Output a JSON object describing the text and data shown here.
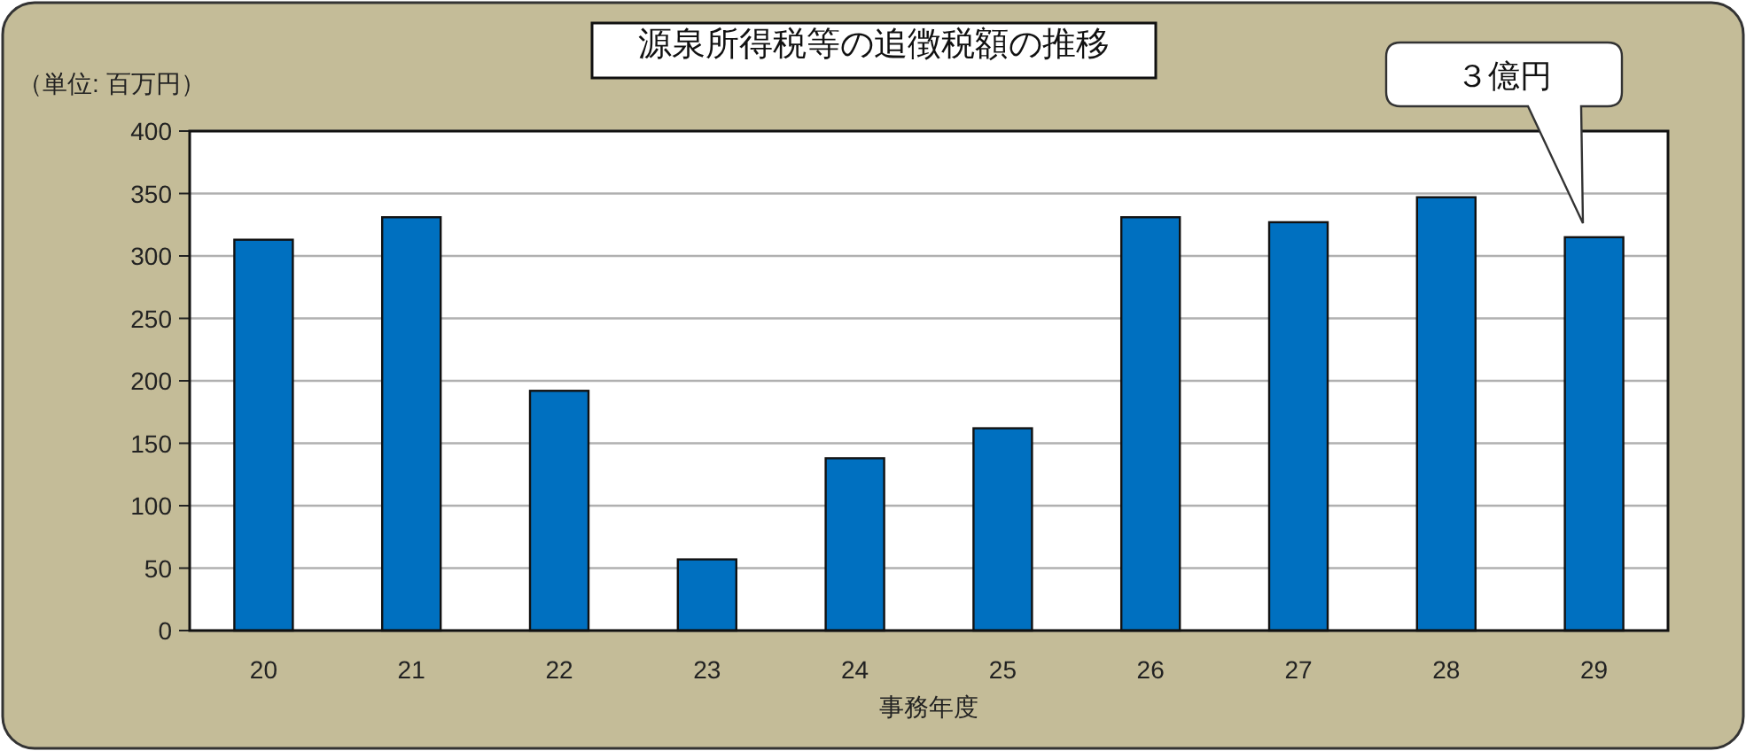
{
  "chart_data": {
    "type": "bar",
    "title": "源泉所得税等の追徴税額の推移",
    "ylabel": "（単位: 百万円）",
    "xlabel": "事務年度",
    "categories": [
      "20",
      "21",
      "22",
      "23",
      "24",
      "25",
      "26",
      "27",
      "28",
      "29"
    ],
    "values": [
      313,
      331,
      192,
      57,
      138,
      162,
      331,
      327,
      347,
      315
    ],
    "color": "#0070c0",
    "ylim": [
      0,
      400
    ],
    "yticks": [
      0,
      50,
      100,
      150,
      200,
      250,
      300,
      350,
      400
    ],
    "grid": "y",
    "annotations": [
      "３億円"
    ]
  }
}
